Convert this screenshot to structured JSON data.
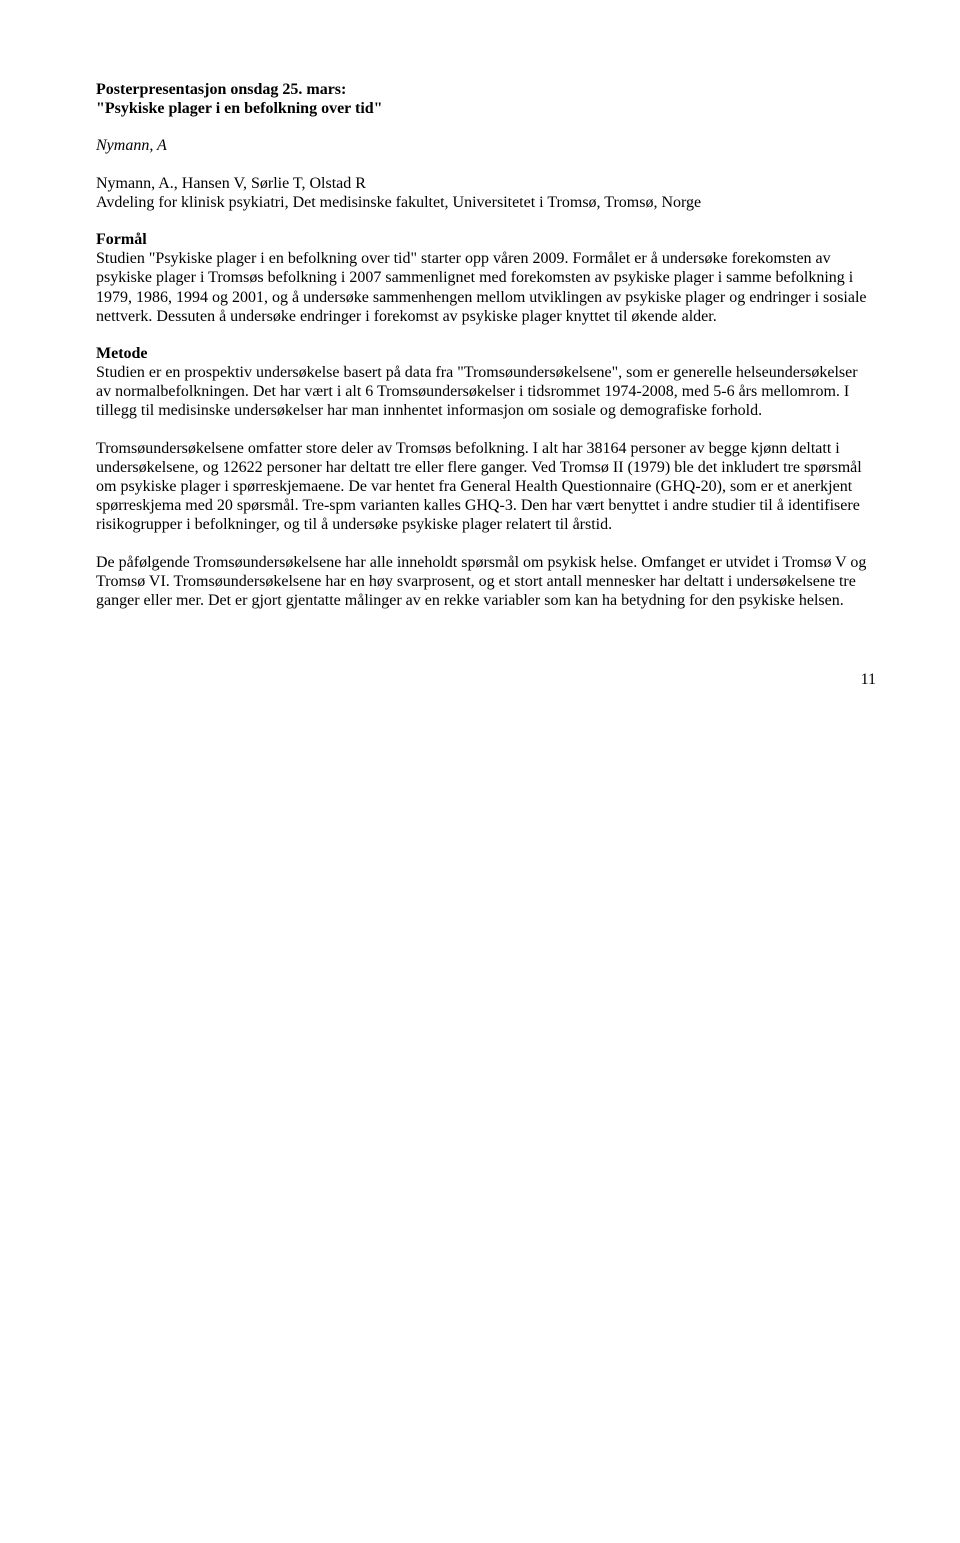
{
  "header": {
    "line1": "Posterpresentasjon onsdag 25. mars:",
    "line2": "\"Psykiske plager i en befolkning over tid\""
  },
  "author_primary": "Nymann, A",
  "authors_line": "Nymann, A., Hansen V, Sørlie T, Olstad R",
  "affiliation": "Avdeling for klinisk psykiatri, Det medisinske fakultet, Universitetet i Tromsø, Tromsø, Norge",
  "sections": {
    "formal_heading": "Formål",
    "formal_text": "Studien \"Psykiske plager i en befolkning over tid\" starter opp våren 2009. Formålet er å undersøke forekomsten av psykiske plager i Tromsøs befolkning i 2007 sammenlignet med forekomsten av psykiske plager i samme befolkning i 1979, 1986, 1994 og 2001, og å undersøke sammenhengen mellom utviklingen av psykiske plager og endringer i sosiale nettverk. Dessuten å undersøke endringer i forekomst av psykiske plager knyttet til økende alder.",
    "metode_heading": "Metode",
    "metode_p1": "Studien er en prospektiv undersøkelse basert på data fra \"Tromsøundersøkelsene\", som er generelle helseundersøkelser av normalbefolkningen. Det har vært i alt 6 Tromsøundersøkelser i tidsrommet 1974-2008, med 5-6 års mellomrom. I tillegg til medisinske undersøkelser har man innhentet informasjon om sosiale og demografiske forhold.",
    "metode_p2": "Tromsøundersøkelsene omfatter store deler av Tromsøs befolkning. I alt har 38164 personer av begge kjønn deltatt i undersøkelsene, og 12622 personer har deltatt tre eller flere ganger. Ved Tromsø II (1979) ble det inkludert tre spørsmål om psykiske plager i spørreskjemaene. De var hentet fra General Health Questionnaire (GHQ-20), som er et anerkjent spørreskjema med 20 spørsmål. Tre-spm varianten kalles GHQ-3. Den har vært benyttet i andre studier til å identifisere risikogrupper i befolkninger, og til å undersøke psykiske plager relatert til årstid.",
    "metode_p3": "De påfølgende Tromsøundersøkelsene har alle inneholdt spørsmål om psykisk helse. Omfanget er utvidet i Tromsø V og Tromsø VI. Tromsøundersøkelsene har en høy svarprosent, og et stort antall mennesker har deltatt i undersøkelsene tre ganger eller mer. Det er gjort gjentatte målinger av en rekke variabler som kan ha betydning for den psykiske helsen."
  },
  "page_number": "11"
}
